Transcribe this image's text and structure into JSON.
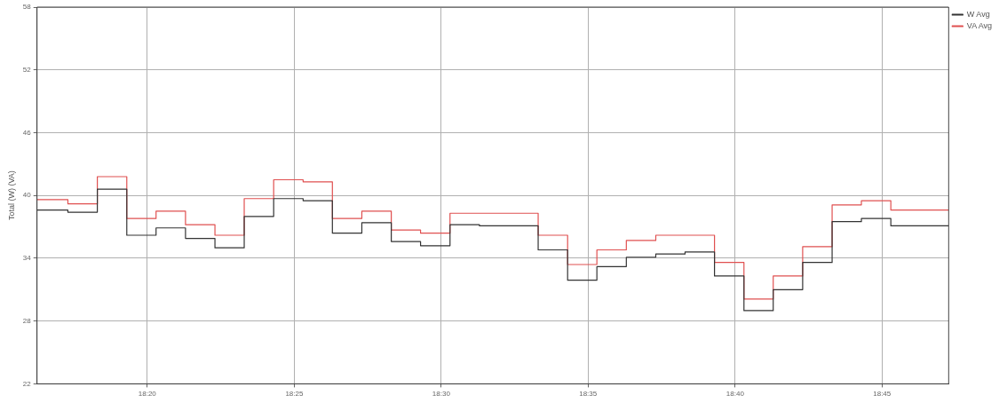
{
  "chart_data": {
    "type": "step",
    "ylabel": "Total (W) (VA)",
    "x": [
      18.2708,
      18.2883,
      18.305,
      18.3217,
      18.3383,
      18.355,
      18.3717,
      18.3883,
      18.405,
      18.4217,
      18.4383,
      18.455,
      18.4717,
      18.4883,
      18.505,
      18.5217,
      18.5383,
      18.555,
      18.5717,
      18.5883,
      18.605,
      18.6217,
      18.6383,
      18.655,
      18.6717,
      18.6883,
      18.705,
      18.7217,
      18.7383,
      18.755,
      18.7878
    ],
    "series": [
      {
        "name": "W Avg",
        "color": "#333333",
        "values": [
          38.6,
          38.4,
          40.6,
          36.2,
          36.9,
          35.9,
          35.0,
          38.0,
          39.7,
          39.5,
          36.4,
          37.4,
          35.6,
          35.2,
          37.2,
          37.1,
          37.1,
          34.8,
          31.9,
          33.2,
          34.1,
          34.4,
          34.6,
          32.3,
          29.0,
          31.0,
          33.6,
          37.5,
          37.8,
          37.1,
          37.1
        ]
      },
      {
        "name": "VA Avg",
        "color": "#e05050",
        "values": [
          39.6,
          39.2,
          41.8,
          37.8,
          38.5,
          37.2,
          36.2,
          39.7,
          41.5,
          41.3,
          37.8,
          38.5,
          36.7,
          36.4,
          38.3,
          38.3,
          38.3,
          36.2,
          33.4,
          34.8,
          35.7,
          36.2,
          36.2,
          33.6,
          30.1,
          32.3,
          35.1,
          39.1,
          39.5,
          38.6,
          38.6
        ]
      }
    ],
    "xlim": [
      18.2708,
      18.7878
    ],
    "xticks": [
      {
        "value": 18.3333,
        "label": "18:20"
      },
      {
        "value": 18.4167,
        "label": "18:25"
      },
      {
        "value": 18.5,
        "label": "18:30"
      },
      {
        "value": 18.5833,
        "label": "18:35"
      },
      {
        "value": 18.6667,
        "label": "18:40"
      },
      {
        "value": 18.75,
        "label": "18:45"
      }
    ],
    "ylim": [
      22,
      58
    ],
    "yticks": [
      22,
      28,
      34,
      40,
      46,
      52,
      58
    ],
    "grid": true,
    "legend": "top right",
    "line_style": "solid",
    "marker": "none"
  }
}
